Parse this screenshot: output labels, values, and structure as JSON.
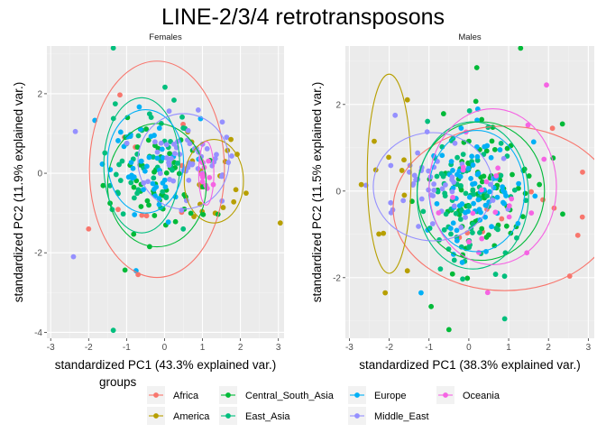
{
  "title": "LINE-2/3/4 retrotransposons",
  "colors": {
    "panel_bg": "#ebebeb",
    "grid_major": "#ffffff",
    "grid_minor": "#f3f3f3",
    "Africa": "#F8766D",
    "America": "#B79F00",
    "Central_South_Asia": "#00BA38",
    "East_Asia": "#00BF7D",
    "Europe": "#00B0F6",
    "Middle_East": "#9590FF",
    "Oceania": "#F564E3"
  },
  "legend": {
    "title": "groups",
    "entries": [
      "Africa",
      "America",
      "Central_South_Asia",
      "East_Asia",
      "Europe",
      "Middle_East",
      "Oceania"
    ]
  },
  "chart_data": [
    {
      "type": "scatter",
      "title": "Females",
      "xlabel": "standardized PC1 (43.3% explained var.)",
      "ylabel": "standardized PC2 (11.9% explained var.)",
      "xlim": [
        -3.1,
        3.15
      ],
      "ylim": [
        -4.15,
        3.2
      ],
      "xticks": [
        -3,
        -2,
        -1,
        0,
        1,
        2,
        3
      ],
      "yticks": [
        -4,
        -2,
        0,
        2
      ],
      "grid": true,
      "seed": 11,
      "ellipses": [
        {
          "group": "Africa",
          "cx": -0.2,
          "cy": 0.1,
          "rx": 1.78,
          "ry": 2.72
        },
        {
          "group": "America",
          "cx": 1.3,
          "cy": -0.2,
          "rx": 0.78,
          "ry": 1.05
        },
        {
          "group": "Central_South_Asia",
          "cx": -0.2,
          "cy": -0.3,
          "rx": 1.3,
          "ry": 1.55
        },
        {
          "group": "East_Asia",
          "cx": -0.6,
          "cy": 0.2,
          "rx": 1.0,
          "ry": 1.7
        },
        {
          "group": "Europe",
          "cx": -0.5,
          "cy": 0.3,
          "rx": 1.0,
          "ry": 1.3
        },
        {
          "group": "Middle_East",
          "cx": 0.5,
          "cy": 0.3,
          "rx": 1.2,
          "ry": 1.2
        },
        {
          "group": "Oceania",
          "cx": 1.1,
          "cy": 0.0,
          "rx": 0.2,
          "ry": 0.8
        }
      ],
      "clusters": [
        {
          "group": "Africa",
          "n": 10,
          "cx": -0.2,
          "cy": 0.1,
          "sx": 0.9,
          "sy": 1.2
        },
        {
          "group": "America",
          "n": 18,
          "cx": 1.3,
          "cy": -0.2,
          "sx": 0.45,
          "sy": 0.55
        },
        {
          "group": "Central_South_Asia",
          "n": 55,
          "cx": -0.2,
          "cy": -0.3,
          "sx": 0.6,
          "sy": 0.75
        },
        {
          "group": "East_Asia",
          "n": 45,
          "cx": -0.6,
          "cy": 0.2,
          "sx": 0.5,
          "sy": 0.8
        },
        {
          "group": "Europe",
          "n": 45,
          "cx": -0.5,
          "cy": 0.3,
          "sx": 0.5,
          "sy": 0.6
        },
        {
          "group": "Middle_East",
          "n": 55,
          "cx": 0.5,
          "cy": 0.3,
          "sx": 0.6,
          "sy": 0.6
        },
        {
          "group": "Oceania",
          "n": 12,
          "cx": 1.1,
          "cy": 0.0,
          "sx": 0.1,
          "sy": 0.4
        }
      ],
      "points": [
        {
          "group": "East_Asia",
          "x": -1.35,
          "y": 3.15
        },
        {
          "group": "East_Asia",
          "x": -1.35,
          "y": -3.95
        },
        {
          "group": "America",
          "x": 3.05,
          "y": -1.25
        },
        {
          "group": "Middle_East",
          "x": -2.35,
          "y": 1.05
        },
        {
          "group": "Middle_East",
          "x": -2.4,
          "y": -2.1
        },
        {
          "group": "Africa",
          "x": -2.0,
          "y": -1.4
        },
        {
          "group": "America",
          "x": 2.15,
          "y": -0.5
        },
        {
          "group": "America",
          "x": 1.75,
          "y": 0.85
        },
        {
          "group": "Europe",
          "x": -0.75,
          "y": -2.45
        }
      ]
    },
    {
      "type": "scatter",
      "title": "Males",
      "xlabel": "standardized PC1 (38.3% explained var.)",
      "ylabel": "standardized PC2 (11.5% explained var.)",
      "xlim": [
        -3.1,
        3.15
      ],
      "ylim": [
        -3.4,
        3.35
      ],
      "xticks": [
        -3,
        -2,
        -1,
        0,
        1,
        2,
        3
      ],
      "yticks": [
        -2,
        0,
        2
      ],
      "grid": true,
      "seed": 29,
      "ellipses": [
        {
          "group": "Africa",
          "cx": 0.9,
          "cy": -0.4,
          "rx": 2.8,
          "ry": 1.9
        },
        {
          "group": "America",
          "cx": -2.0,
          "cy": 0.4,
          "rx": 0.55,
          "ry": 2.3
        },
        {
          "group": "Central_South_Asia",
          "cx": 0.3,
          "cy": 0.0,
          "rx": 1.6,
          "ry": 1.6
        },
        {
          "group": "East_Asia",
          "cx": 0.1,
          "cy": -0.1,
          "rx": 1.4,
          "ry": 1.7
        },
        {
          "group": "Europe",
          "cx": 0.2,
          "cy": 0.0,
          "rx": 1.2,
          "ry": 1.4
        },
        {
          "group": "Middle_East",
          "cx": -0.9,
          "cy": 0.1,
          "rx": 1.5,
          "ry": 1.25
        },
        {
          "group": "Oceania",
          "cx": 0.6,
          "cy": 0.1,
          "rx": 1.6,
          "ry": 1.8
        }
      ],
      "clusters": [
        {
          "group": "Africa",
          "n": 12,
          "cx": 0.9,
          "cy": -0.4,
          "sx": 1.2,
          "sy": 0.9
        },
        {
          "group": "America",
          "n": 10,
          "cx": -2.0,
          "cy": 0.3,
          "sx": 0.35,
          "sy": 1.1
        },
        {
          "group": "Central_South_Asia",
          "n": 80,
          "cx": 0.3,
          "cy": 0.0,
          "sx": 0.7,
          "sy": 0.8
        },
        {
          "group": "East_Asia",
          "n": 80,
          "cx": 0.1,
          "cy": -0.1,
          "sx": 0.6,
          "sy": 0.8
        },
        {
          "group": "Europe",
          "n": 70,
          "cx": 0.2,
          "cy": 0.0,
          "sx": 0.55,
          "sy": 0.65
        },
        {
          "group": "Middle_East",
          "n": 45,
          "cx": -0.9,
          "cy": 0.1,
          "sx": 0.7,
          "sy": 0.6
        },
        {
          "group": "Oceania",
          "n": 22,
          "cx": 0.6,
          "cy": 0.1,
          "sx": 0.7,
          "sy": 0.8
        }
      ],
      "points": [
        {
          "group": "Central_South_Asia",
          "x": 1.3,
          "y": 3.3
        },
        {
          "group": "Oceania",
          "x": 1.95,
          "y": 2.45
        },
        {
          "group": "Africa",
          "x": 2.85,
          "y": -0.6
        },
        {
          "group": "Africa",
          "x": 2.1,
          "y": 1.45
        },
        {
          "group": "Central_South_Asia",
          "x": 2.35,
          "y": 1.55
        },
        {
          "group": "America",
          "x": -2.7,
          "y": 0.15
        },
        {
          "group": "America",
          "x": -2.1,
          "y": -2.35
        },
        {
          "group": "Central_South_Asia",
          "x": -0.5,
          "y": -3.2
        },
        {
          "group": "East_Asia",
          "x": 0.9,
          "y": -2.95
        },
        {
          "group": "Middle_East",
          "x": -1.85,
          "y": 1.75
        },
        {
          "group": "Europe",
          "x": -1.2,
          "y": -2.35
        },
        {
          "group": "Central_South_Asia",
          "x": 0.2,
          "y": 2.85
        }
      ]
    }
  ]
}
